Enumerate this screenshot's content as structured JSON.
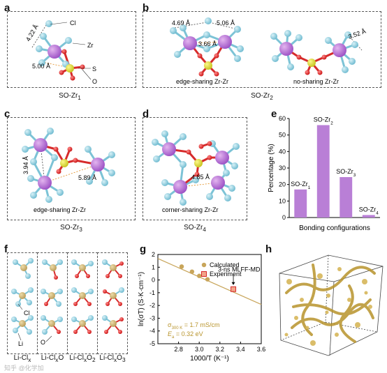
{
  "panels": {
    "a": {
      "label": "a",
      "atoms": {
        "cl": "Cl",
        "zr": "Zr",
        "s": "S",
        "o": "O"
      },
      "dists": [
        "4.22 Å",
        "5.00 Å"
      ],
      "caption_main": "SO-Zr",
      "caption_sub": "1"
    },
    "b": {
      "label": "b",
      "dists": [
        "4.69 Å",
        "5.06 Å",
        "3.66 Å",
        "3.52 Å"
      ],
      "left_label": "edge-sharing Zr-Zr",
      "right_label": "no-sharing Zr-Zr",
      "caption_main": "SO-Zr",
      "caption_sub": "2"
    },
    "c": {
      "label": "c",
      "dists": [
        "3.94 Å",
        "5.89 Å"
      ],
      "inner_label": "edge-sharing Zr-Zr",
      "caption_main": "SO-Zr",
      "caption_sub": "3"
    },
    "d": {
      "label": "d",
      "dists": [
        "4.85 Å"
      ],
      "inner_label": "corner-sharing Zr-Zr",
      "caption_main": "SO-Zr",
      "caption_sub": "4"
    },
    "e": {
      "label": "e"
    },
    "f": {
      "label": "f",
      "atoms": {
        "cl": "Cl",
        "li": "Li",
        "o": "O"
      },
      "cols": [
        {
          "main": "Li-Cl",
          "sub": "x"
        },
        {
          "main": "Li-Cl",
          "sub": "x",
          "tail": "O"
        },
        {
          "main": "Li-Cl",
          "sub": "x",
          "tail": "O",
          "tsub": "2"
        },
        {
          "main": "Li-Cl",
          "sub": "x",
          "tail": "O",
          "tsub": "3"
        }
      ]
    },
    "g": {
      "label": "g"
    },
    "h": {
      "label": "h"
    }
  },
  "watermark": "知乎 @化学加",
  "chart_data": [
    {
      "type": "bar",
      "panel": "e",
      "categories": [
        "SO-Zr1",
        "SO-Zr2",
        "SO-Zr3",
        "SO-Zr4"
      ],
      "bar_labels": [
        {
          "main": "SO-Zr",
          "sub": "1"
        },
        {
          "main": "SO-Zr",
          "sub": "2"
        },
        {
          "main": "SO-Zr",
          "sub": "3"
        },
        {
          "main": "SO-Zr",
          "sub": "4"
        }
      ],
      "values": [
        17,
        56,
        24.5,
        1.5
      ],
      "xlabel": "Bonding configurations",
      "ylabel": "Percentage (%)",
      "ylim": [
        0,
        60
      ],
      "yticks": [
        0,
        10,
        20,
        30,
        40,
        50,
        60
      ],
      "color": "#b97fd6"
    },
    {
      "type": "scatter",
      "panel": "g",
      "xlabel": "1000/T (K⁻¹)",
      "ylabel": "ln(σT) (S·K·cm⁻¹)",
      "xlim": [
        2.6,
        3.6
      ],
      "ylim": [
        -5,
        2
      ],
      "xticks": [
        "2.8",
        "3.0",
        "3.2",
        "3.4",
        "3.6"
      ],
      "yticks": [
        "-5",
        "-4",
        "-3",
        "-2",
        "-1",
        "0",
        "1",
        "2"
      ],
      "series": [
        {
          "name": "Calculated",
          "color": "#c8a55a",
          "x": [
            2.83,
            2.93,
            3.0,
            3.08
          ],
          "y": [
            1.05,
            0.65,
            0.32,
            0.05
          ],
          "err": [
            0.15,
            0.15,
            0.15,
            0.15
          ]
        },
        {
          "name": "Experiment",
          "color": "#d62728",
          "x": [
            3.33
          ],
          "y": [
            -0.72
          ]
        }
      ],
      "fit": {
        "x": [
          2.6,
          3.6
        ],
        "y": [
          1.68,
          -1.92
        ],
        "color": "#c8a55a"
      },
      "annotation": "3-ns MLFF-MD",
      "sigma_label": "σ",
      "sigma_sub": "300 K",
      "sigma_value": " = 1.7 mS/cm",
      "ea_label": "E",
      "ea_sub": "a",
      "ea_value": " = 0.32 eV"
    }
  ]
}
